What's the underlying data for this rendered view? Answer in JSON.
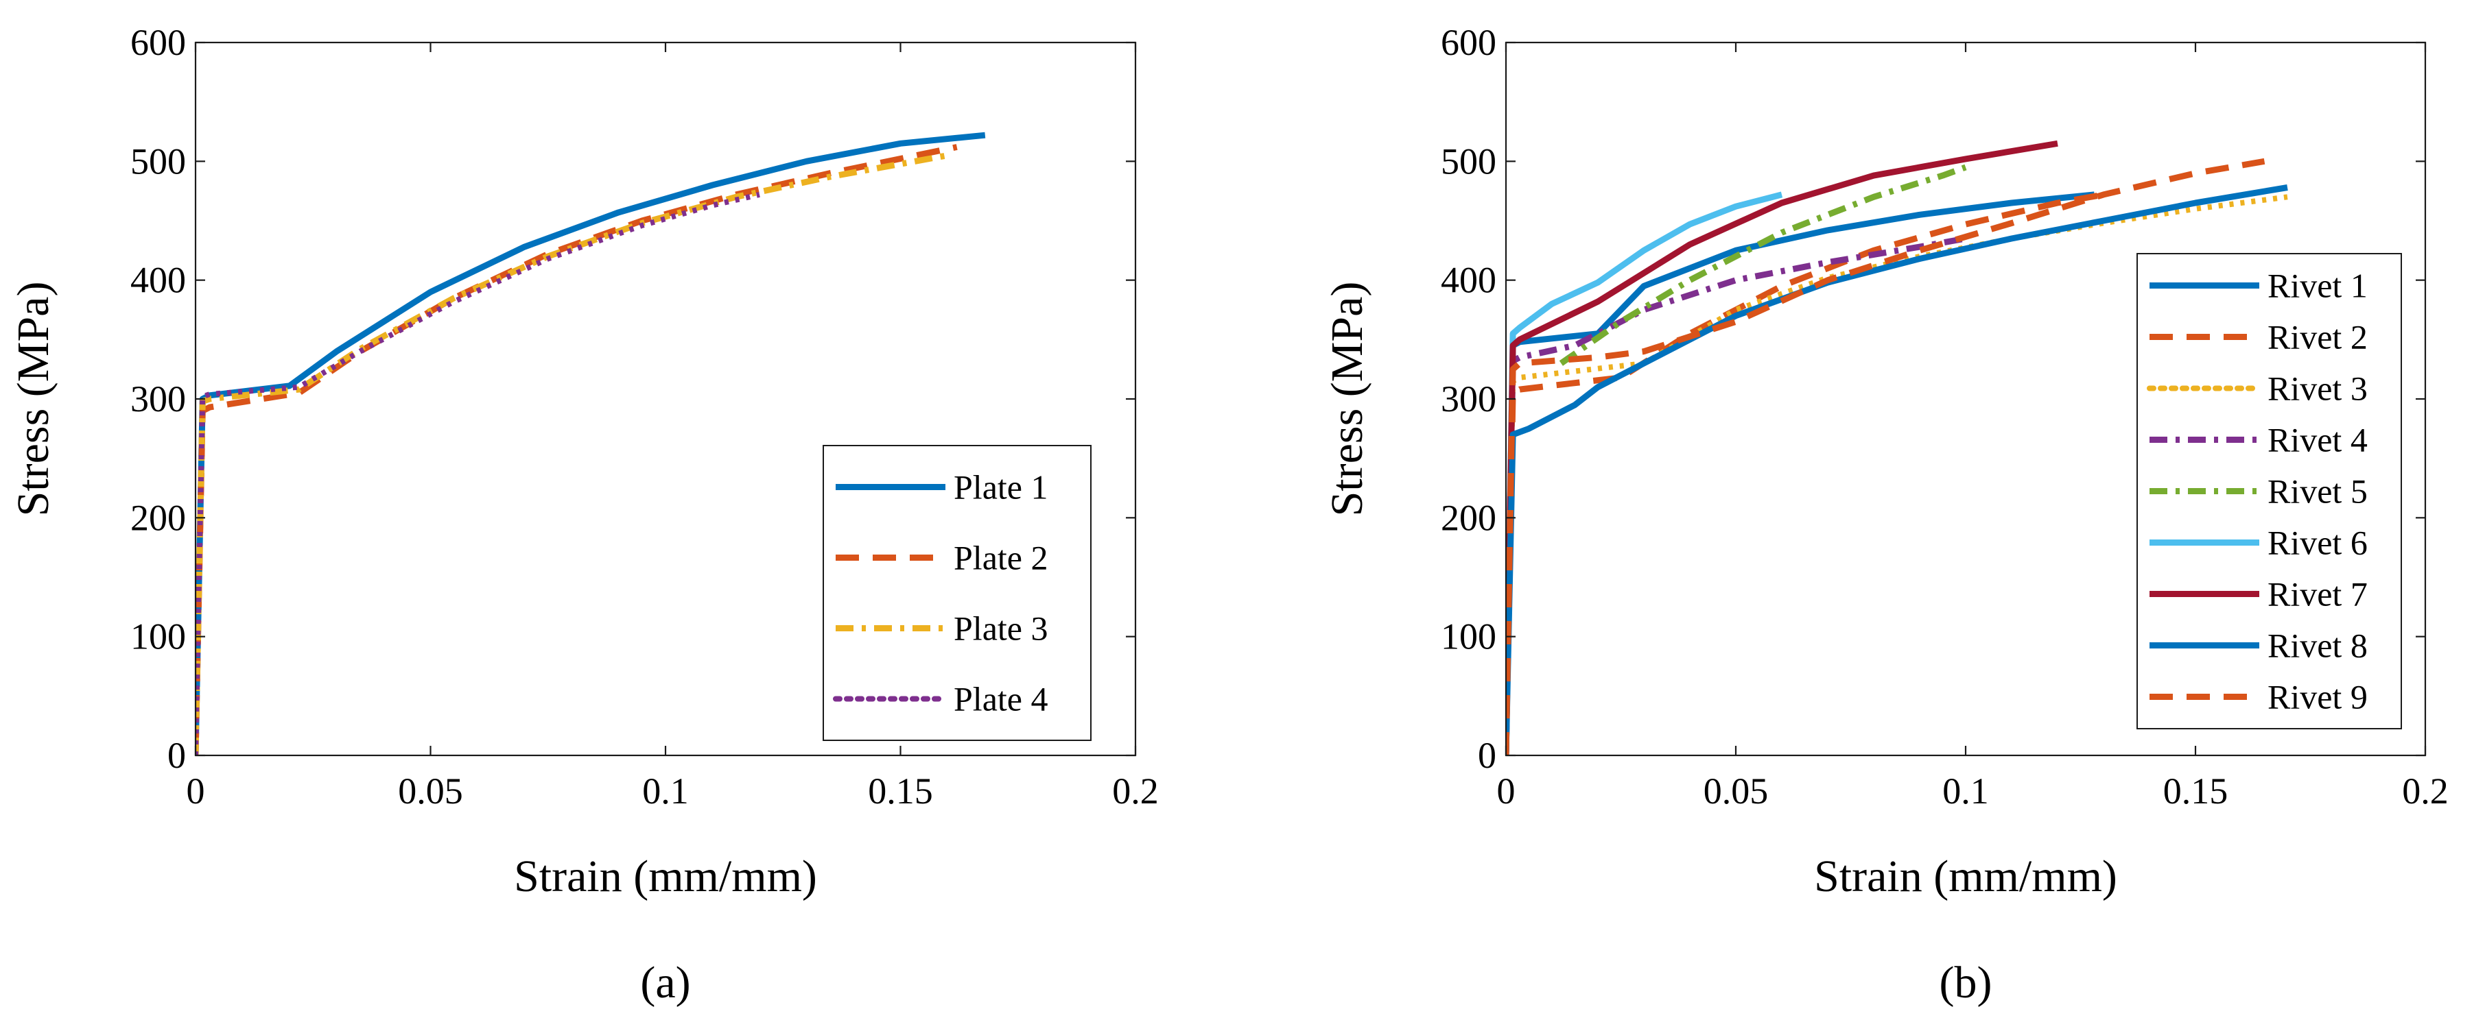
{
  "chart_data": [
    {
      "type": "line",
      "panel_label": "(a)",
      "title": "",
      "xlabel": "Strain (mm/mm)",
      "ylabel": "Stress (MPa)",
      "xlim": [
        0,
        0.2
      ],
      "ylim": [
        0,
        600
      ],
      "xticks": [
        0,
        0.05,
        0.1,
        0.15,
        0.2
      ],
      "xtick_labels": [
        "0",
        "0.05",
        "0.1",
        "0.15",
        "0.2"
      ],
      "yticks": [
        0,
        100,
        200,
        300,
        400,
        500,
        600
      ],
      "ytick_labels": [
        "0",
        "100",
        "200",
        "300",
        "400",
        "500",
        "600"
      ],
      "grid": false,
      "legend_position": "bottom-right",
      "series": [
        {
          "name": "Plate 1",
          "color": "#0072BD",
          "dash": "solid",
          "x": [
            0,
            0.0015,
            0.003,
            0.02,
            0.03,
            0.05,
            0.07,
            0.09,
            0.11,
            0.13,
            0.15,
            0.168
          ],
          "y": [
            0,
            300,
            303,
            311,
            340,
            390,
            428,
            457,
            480,
            500,
            515,
            522
          ]
        },
        {
          "name": "Plate 2",
          "color": "#D95319",
          "dash": "dashed",
          "x": [
            0,
            0.0015,
            0.003,
            0.022,
            0.035,
            0.055,
            0.075,
            0.095,
            0.115,
            0.135,
            0.162
          ],
          "y": [
            0,
            290,
            293,
            305,
            340,
            385,
            422,
            450,
            472,
            490,
            512
          ]
        },
        {
          "name": "Plate 3",
          "color": "#EDB120",
          "dash": "dashdot",
          "x": [
            0,
            0.0015,
            0.003,
            0.022,
            0.035,
            0.055,
            0.075,
            0.095,
            0.115,
            0.135,
            0.16
          ],
          "y": [
            0,
            298,
            300,
            308,
            342,
            385,
            420,
            448,
            470,
            487,
            505
          ]
        },
        {
          "name": "Plate 4",
          "color": "#7E2F8E",
          "dash": "dotted",
          "x": [
            0,
            0.0015,
            0.003,
            0.022,
            0.035,
            0.055,
            0.075,
            0.095,
            0.11,
            0.12
          ],
          "y": [
            0,
            302,
            304,
            310,
            340,
            382,
            418,
            446,
            463,
            472
          ]
        }
      ]
    },
    {
      "type": "line",
      "panel_label": "(b)",
      "title": "",
      "xlabel": "Strain (mm/mm)",
      "ylabel": "Stress (MPa)",
      "xlim": [
        0,
        0.2
      ],
      "ylim": [
        0,
        600
      ],
      "xticks": [
        0,
        0.05,
        0.1,
        0.15,
        0.2
      ],
      "xtick_labels": [
        "0",
        "0.05",
        "0.1",
        "0.15",
        "0.2"
      ],
      "yticks": [
        0,
        100,
        200,
        300,
        400,
        500,
        600
      ],
      "ytick_labels": [
        "0",
        "100",
        "200",
        "300",
        "400",
        "500",
        "600"
      ],
      "grid": false,
      "legend_position": "right",
      "series": [
        {
          "name": "Rivet 1",
          "color": "#0072BD",
          "dash": "solid",
          "x": [
            0,
            0.0015,
            0.003,
            0.02,
            0.03,
            0.05,
            0.07,
            0.09,
            0.11,
            0.128
          ],
          "y": [
            0,
            345,
            348,
            355,
            395,
            425,
            442,
            455,
            465,
            472
          ]
        },
        {
          "name": "Rivet 2",
          "color": "#D95319",
          "dash": "dashed",
          "x": [
            0,
            0.0015,
            0.003,
            0.025,
            0.04,
            0.06,
            0.08,
            0.1,
            0.12,
            0.13
          ],
          "y": [
            0,
            305,
            308,
            318,
            355,
            395,
            425,
            447,
            465,
            472
          ]
        },
        {
          "name": "Rivet 3",
          "color": "#EDB120",
          "dash": "dotted",
          "x": [
            0,
            0.0015,
            0.003,
            0.03,
            0.05,
            0.07,
            0.09,
            0.11,
            0.13,
            0.15,
            0.17
          ],
          "y": [
            0,
            315,
            318,
            330,
            375,
            402,
            420,
            435,
            448,
            460,
            470
          ]
        },
        {
          "name": "Rivet 4",
          "color": "#7E2F8E",
          "dash": "dashdot",
          "x": [
            0,
            0.0015,
            0.003,
            0.015,
            0.03,
            0.05,
            0.07,
            0.09,
            0.1
          ],
          "y": [
            0,
            332,
            335,
            345,
            375,
            400,
            415,
            428,
            435
          ]
        },
        {
          "name": "Rivet 5",
          "color": "#77AC30",
          "dash": "dashdot",
          "x": [
            0.012,
            0.025,
            0.04,
            0.06,
            0.08,
            0.095,
            0.1
          ],
          "y": [
            330,
            365,
            400,
            440,
            470,
            488,
            495
          ]
        },
        {
          "name": "Rivet 6",
          "color": "#4DBEEE",
          "dash": "solid",
          "x": [
            0,
            0.0015,
            0.003,
            0.01,
            0.02,
            0.03,
            0.04,
            0.05,
            0.06
          ],
          "y": [
            0,
            355,
            360,
            380,
            398,
            425,
            447,
            462,
            472
          ]
        },
        {
          "name": "Rivet 7",
          "color": "#A2142F",
          "dash": "solid",
          "x": [
            0,
            0.0015,
            0.003,
            0.02,
            0.04,
            0.06,
            0.08,
            0.1,
            0.12
          ],
          "y": [
            0,
            345,
            350,
            382,
            430,
            465,
            488,
            502,
            515
          ]
        },
        {
          "name": "Rivet 8",
          "color": "#0072BD",
          "dash": "solid",
          "x": [
            0,
            0.0015,
            0.005,
            0.015,
            0.02,
            0.03,
            0.05,
            0.07,
            0.09,
            0.11,
            0.13,
            0.15,
            0.17
          ],
          "y": [
            0,
            270,
            275,
            295,
            310,
            330,
            370,
            398,
            418,
            435,
            450,
            465,
            478
          ]
        },
        {
          "name": "Rivet 9",
          "color": "#D95319",
          "dash": "dashed",
          "x": [
            0,
            0.0015,
            0.003,
            0.02,
            0.03,
            0.05,
            0.07,
            0.09,
            0.11,
            0.13,
            0.15,
            0.165
          ],
          "y": [
            0,
            325,
            330,
            335,
            340,
            365,
            400,
            425,
            448,
            472,
            490,
            500
          ]
        }
      ]
    }
  ]
}
